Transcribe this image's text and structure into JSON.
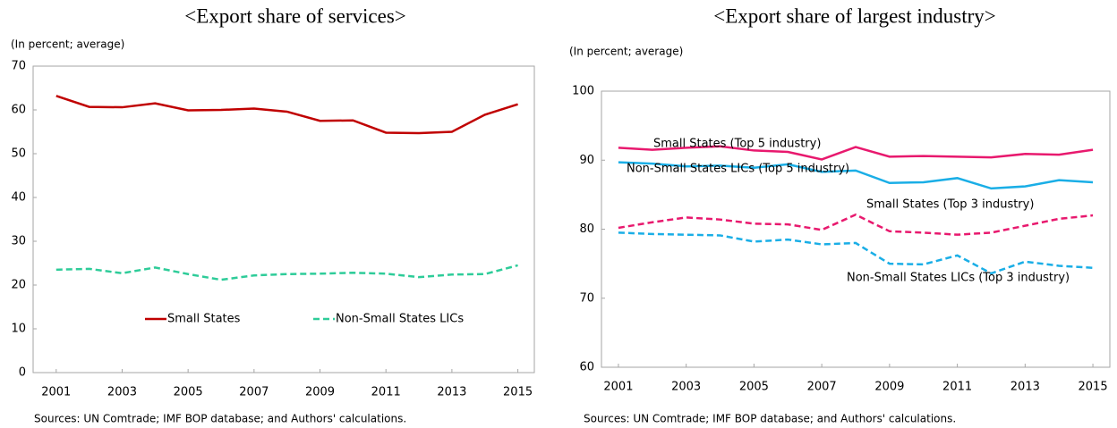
{
  "chart_data": [
    {
      "type": "line",
      "title": "<Export share of services>",
      "y_label": "(In percent; average)",
      "note": "Sources: UN Comtrade; IMF BOP database; and Authors' calculations.",
      "x": [
        2001,
        2002,
        2003,
        2004,
        2005,
        2006,
        2007,
        2008,
        2009,
        2010,
        2011,
        2012,
        2013,
        2014,
        2015
      ],
      "xlim": [
        2000.3,
        2015.5
      ],
      "xticks": [
        2001,
        2003,
        2005,
        2007,
        2009,
        2011,
        2013,
        2015
      ],
      "ylim": [
        0,
        70
      ],
      "yticks": [
        0,
        10,
        20,
        30,
        40,
        50,
        60,
        70
      ],
      "legend": "bottom",
      "series": [
        {
          "name": "Small States",
          "color": "#c00000",
          "style": "solid",
          "values": [
            63.2,
            60.7,
            60.6,
            61.5,
            59.9,
            60.0,
            60.3,
            59.6,
            57.5,
            57.6,
            54.8,
            54.7,
            55.0,
            58.9,
            61.3
          ]
        },
        {
          "name": "Non-Small States LICs",
          "color": "#2ecc99",
          "style": "dashed",
          "values": [
            23.5,
            23.7,
            22.7,
            24.0,
            22.5,
            21.2,
            22.2,
            22.5,
            22.6,
            22.8,
            22.6,
            21.8,
            22.4,
            22.5,
            24.5
          ]
        }
      ]
    },
    {
      "type": "line",
      "title": "<Export share of largest industry>",
      "y_label": "(In percent; average)",
      "note": "Sources: UN Comtrade; IMF BOP database; and Authors' calculations.",
      "x": [
        2001,
        2002,
        2003,
        2004,
        2005,
        2006,
        2007,
        2008,
        2009,
        2010,
        2011,
        2012,
        2013,
        2014,
        2015
      ],
      "xlim": [
        2000.5,
        2015.5
      ],
      "xticks": [
        2001,
        2003,
        2005,
        2007,
        2009,
        2011,
        2013,
        2015
      ],
      "ylim": [
        60,
        100
      ],
      "yticks": [
        60,
        70,
        80,
        90,
        100
      ],
      "legend": "inline",
      "series": [
        {
          "name": "Small States (Top 5 industry)",
          "color": "#e8196e",
          "style": "solid",
          "values": [
            91.8,
            91.5,
            91.8,
            92.0,
            91.4,
            91.2,
            90.1,
            91.9,
            90.5,
            90.6,
            90.5,
            90.4,
            90.9,
            90.8,
            91.5
          ]
        },
        {
          "name": "Non-Small States LICs (Top 5 industry)",
          "color": "#1aaee6",
          "style": "solid",
          "values": [
            89.7,
            89.5,
            89.1,
            89.2,
            88.9,
            89.4,
            88.3,
            88.5,
            86.7,
            86.8,
            87.4,
            85.9,
            86.2,
            87.1,
            86.8
          ]
        },
        {
          "name": "Small States (Top 3 industry)",
          "color": "#e8196e",
          "style": "dashed",
          "values": [
            80.2,
            81.0,
            81.7,
            81.4,
            80.8,
            80.7,
            79.9,
            82.1,
            79.7,
            79.5,
            79.2,
            79.5,
            80.5,
            81.5,
            82.0
          ]
        },
        {
          "name": "Non-Small States LICs (Top 3 industry)",
          "color": "#1aaee6",
          "style": "dashed",
          "values": [
            79.5,
            79.3,
            79.2,
            79.1,
            78.2,
            78.5,
            77.8,
            78.0,
            75.0,
            74.9,
            76.2,
            73.6,
            75.3,
            74.7,
            74.4
          ]
        }
      ]
    }
  ]
}
